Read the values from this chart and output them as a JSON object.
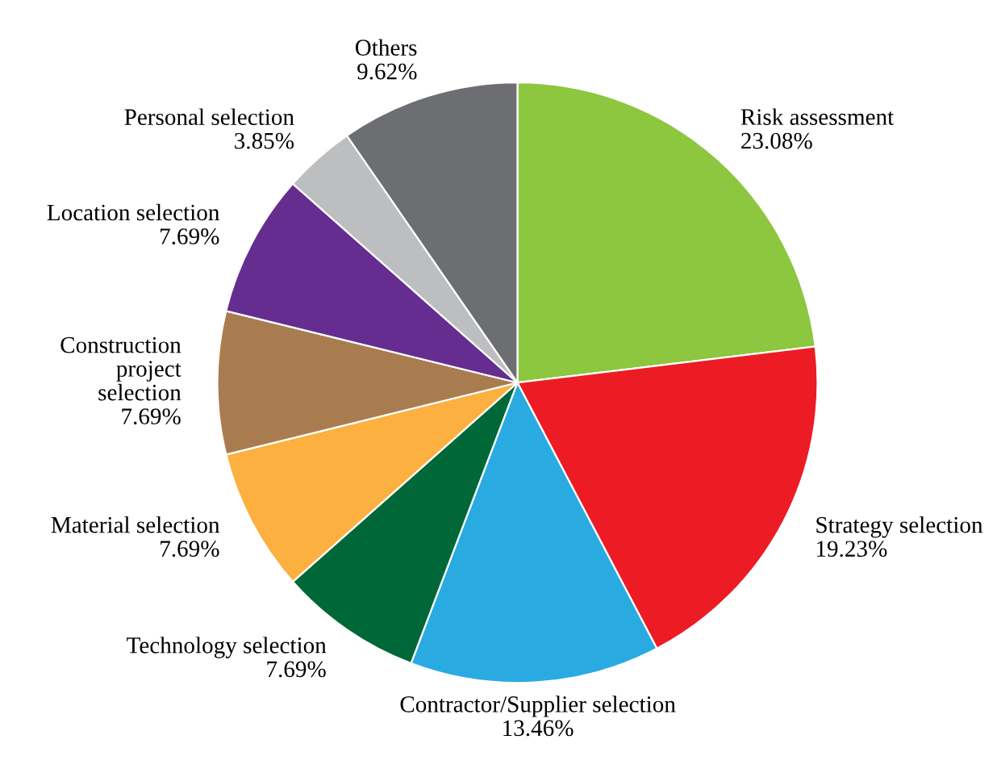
{
  "chart_data": {
    "type": "pie",
    "categories": [
      "Risk assessment",
      "Strategy selection",
      "Contractor/Supplier selection",
      "Technology selection",
      "Material selection",
      "Construction\nproject\nselection",
      "Location selection",
      "Personal selection",
      "Others"
    ],
    "values": [
      23.08,
      19.23,
      13.46,
      7.69,
      7.69,
      7.69,
      7.69,
      3.85,
      9.62
    ],
    "value_labels": [
      "23.08%",
      "19.23%",
      "13.46%",
      "7.69%",
      "7.69%",
      "7.69%",
      "7.69%",
      "3.85%",
      "9.62%"
    ],
    "colors": [
      "#8dc63f",
      "#ed1c24",
      "#29abe2",
      "#006838",
      "#fbb040",
      "#a97c50",
      "#662d91",
      "#bcbec0",
      "#6d6e71"
    ],
    "legend": false
  }
}
